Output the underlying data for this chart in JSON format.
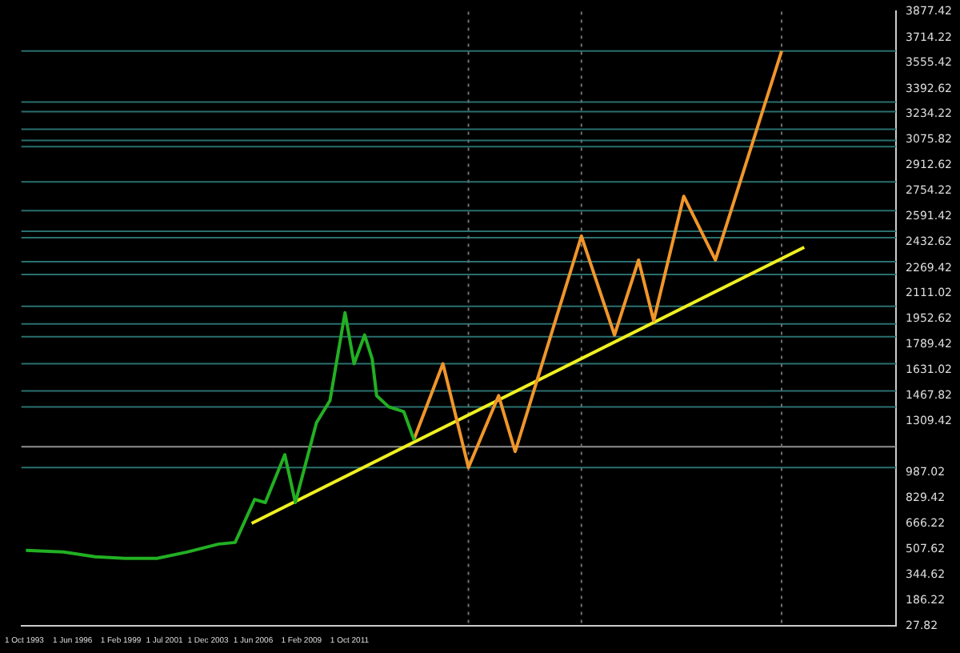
{
  "chart_data": {
    "type": "line",
    "marker": "none",
    "grid": false,
    "xlim": [
      "1993-08",
      "2042-01"
    ],
    "xticks": [
      {
        "value": "1993-10-01",
        "label": "1 Oct 1993"
      },
      {
        "value": "1996-06-01",
        "label": "1 Jun 1996"
      },
      {
        "value": "1999-02-01",
        "label": "1 Feb 1999"
      },
      {
        "value": "2001-07-01",
        "label": "1 Jul 2001"
      },
      {
        "value": "2003-12-01",
        "label": "1 Dec 2003"
      },
      {
        "value": "2006-06-01",
        "label": "1 Jun 2006"
      },
      {
        "value": "2009-02-01",
        "label": "1 Feb 2009"
      },
      {
        "value": "2011-10-01",
        "label": "1 Oct 2011"
      }
    ],
    "ylim": [
      27.82,
      3877.42
    ],
    "yticks": [
      3877.42,
      3714.22,
      3555.42,
      3392.62,
      3234.22,
      3075.82,
      2912.62,
      2754.22,
      2591.42,
      2432.62,
      2269.42,
      2111.02,
      1952.62,
      1789.42,
      1631.02,
      1467.82,
      1309.42,
      987.02,
      829.42,
      666.22,
      507.62,
      344.62,
      186.22,
      27.82
    ],
    "series": [
      {
        "color": "#22b022",
        "x": [
          "1993-11",
          "1995-12",
          "1997-09",
          "1999-05",
          "2001-02",
          "2002-10",
          "2004-07",
          "2005-06",
          "2006-07",
          "2007-02",
          "2008-03",
          "2008-10",
          "2009-12",
          "2010-09",
          "2011-07",
          "2012-01",
          "2012-08",
          "2013-01",
          "2013-04",
          "2013-12",
          "2014-10",
          "2015-05"
        ],
        "values": [
          500,
          490,
          460,
          450,
          450,
          490,
          540,
          550,
          820,
          800,
          1100,
          800,
          1300,
          1440,
          1990,
          1670,
          1850,
          1700,
          1470,
          1400,
          1370,
          1190
        ]
      },
      {
        "color": "#f0962a",
        "x": [
          "2015-05",
          "2016-12",
          "2018-05",
          "2020-01",
          "2020-12",
          "2024-08",
          "2026-06",
          "2027-10",
          "2028-08",
          "2030-04",
          "2032-01",
          "2035-09"
        ],
        "values": [
          1200,
          1670,
          1020,
          1470,
          1120,
          2470,
          1850,
          2320,
          1940,
          2720,
          2320,
          3630
        ]
      },
      {
        "color": "#f0f020",
        "x": [
          "2006-05",
          "2036-12"
        ],
        "values": [
          670,
          2400
        ]
      }
    ],
    "ref_lines": [
      {
        "axis": "y",
        "value": 3630,
        "color": "#2a6f6f"
      },
      {
        "axis": "y",
        "value": 3310,
        "color": "#2a6f6f"
      },
      {
        "axis": "y",
        "value": 3250,
        "color": "#2a6f6f"
      },
      {
        "axis": "y",
        "value": 3140,
        "color": "#2a6f6f"
      },
      {
        "axis": "y",
        "value": 3070,
        "color": "#2a6f6f"
      },
      {
        "axis": "y",
        "value": 3030,
        "color": "#2a6f6f"
      },
      {
        "axis": "y",
        "value": 2810,
        "color": "#2a6f6f"
      },
      {
        "axis": "y",
        "value": 2630,
        "color": "#2a6f6f"
      },
      {
        "axis": "y",
        "value": 2500,
        "color": "#2a6f6f"
      },
      {
        "axis": "y",
        "value": 2460,
        "color": "#2a6f6f"
      },
      {
        "axis": "y",
        "value": 2310,
        "color": "#2a6f6f"
      },
      {
        "axis": "y",
        "value": 2230,
        "color": "#2a6f6f"
      },
      {
        "axis": "y",
        "value": 2030,
        "color": "#2a6f6f"
      },
      {
        "axis": "y",
        "value": 1920,
        "color": "#2a6f6f"
      },
      {
        "axis": "y",
        "value": 1840,
        "color": "#2a6f6f"
      },
      {
        "axis": "y",
        "value": 1670,
        "color": "#2a6f6f"
      },
      {
        "axis": "y",
        "value": 1500,
        "color": "#2a6f6f"
      },
      {
        "axis": "y",
        "value": 1400,
        "color": "#2a6f6f"
      },
      {
        "axis": "y",
        "value": 1020,
        "color": "#2a6f6f"
      },
      {
        "axis": "y",
        "value": 1150,
        "color": "#909090"
      },
      {
        "axis": "x",
        "value": "2018-05",
        "color": "#707070",
        "line_style": "dotted"
      },
      {
        "axis": "x",
        "value": "2024-08",
        "color": "#707070",
        "line_style": "dotted"
      },
      {
        "axis": "x",
        "value": "2035-09",
        "color": "#707070",
        "line_style": "dotted"
      }
    ]
  }
}
